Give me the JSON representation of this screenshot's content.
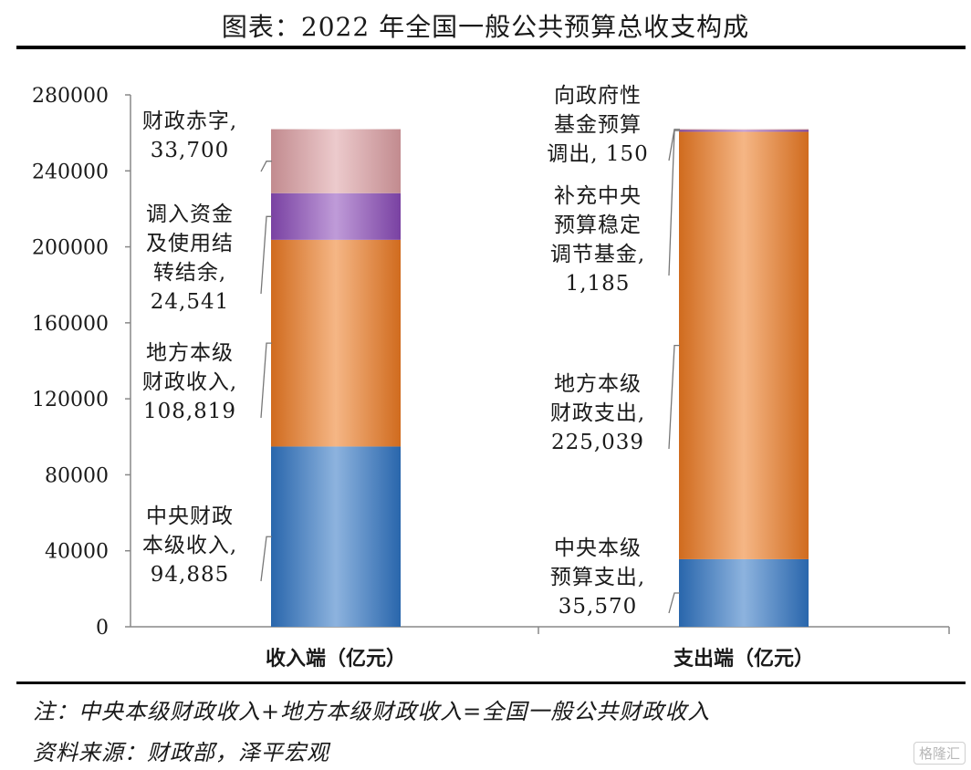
{
  "title": "图表：2022 年全国一般公共预算总收支构成",
  "notes": {
    "note": "注：中央本级财政收入+地方本级财政收入=全国一般公共财政收入",
    "source": "资料来源：财政部，泽平宏观"
  },
  "watermark": "格隆汇",
  "chart_data": {
    "type": "bar",
    "stacked": true,
    "categories": [
      "收入端（亿元）",
      "支出端（亿元）"
    ],
    "ylim": [
      0,
      280000
    ],
    "yticks": [
      0,
      40000,
      80000,
      120000,
      160000,
      200000,
      240000,
      280000
    ],
    "grid": false,
    "columns": [
      {
        "category": "收入端（亿元）",
        "segments": [
          {
            "label_lines": [
              "中央财政",
              "本级收入,",
              "94,885"
            ],
            "value": 94885,
            "color": "#2f74c3"
          },
          {
            "label_lines": [
              "地方本级",
              "财政收入,",
              "108,819"
            ],
            "value": 108819,
            "color": "#ec7a22"
          },
          {
            "label_lines": [
              "调入资金",
              "及使用结",
              "转结余,",
              "24,541"
            ],
            "value": 24541,
            "color": "#8a4ab8"
          },
          {
            "label_lines": [
              "财政赤字,",
              "33,700"
            ],
            "value": 33700,
            "color": "#dd9ea2"
          }
        ]
      },
      {
        "category": "支出端（亿元）",
        "segments": [
          {
            "label_lines": [
              "中央本级",
              "预算支出,",
              "35,570"
            ],
            "value": 35570,
            "color": "#2f74c3"
          },
          {
            "label_lines": [
              "地方本级",
              "财政支出,",
              "225,039"
            ],
            "value": 225039,
            "color": "#ec7a22"
          },
          {
            "label_lines": [
              "补充中央",
              "预算稳定",
              "调节基金,",
              "1,185"
            ],
            "value": 1185,
            "color": "#8a4ab8"
          },
          {
            "label_lines": [
              "向政府性",
              "基金预算",
              "调出, 150"
            ],
            "value": 150,
            "color": "#dd9ea2"
          }
        ]
      }
    ]
  }
}
